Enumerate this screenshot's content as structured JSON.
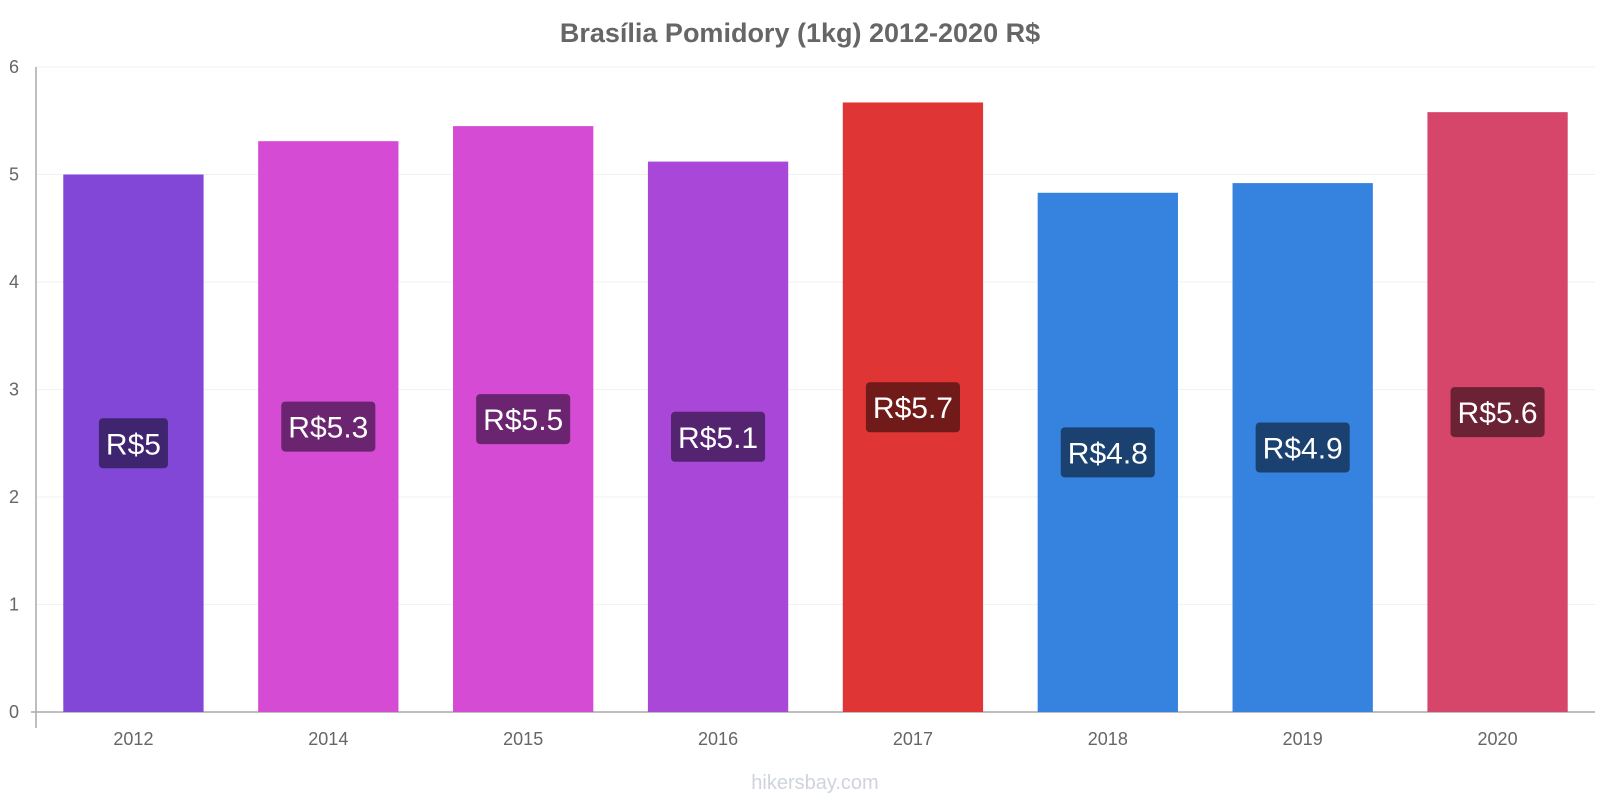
{
  "chart_data": {
    "type": "bar",
    "title": "Brasília Pomidory (1kg) 2012-2020 R$",
    "xlabel": "",
    "ylabel": "",
    "ylim": [
      0,
      6
    ],
    "yticks": [
      "0",
      "1",
      "2",
      "3",
      "4",
      "5",
      "6"
    ],
    "categories": [
      "2012",
      "2014",
      "2015",
      "2016",
      "2017",
      "2018",
      "2019",
      "2020"
    ],
    "values": [
      5.0,
      5.31,
      5.45,
      5.12,
      5.67,
      4.83,
      4.92,
      5.58
    ],
    "data_labels": [
      "R$5",
      "R$5.3",
      "R$5.5",
      "R$5.1",
      "R$5.7",
      "R$4.8",
      "R$4.9",
      "R$5.6"
    ],
    "bar_colors": [
      "#8347d8",
      "#d64bd3",
      "#d64bd3",
      "#a847d8",
      "#e03535",
      "#3583df",
      "#3583df",
      "#d6466a"
    ],
    "label_bg_colors": [
      "#3f2470",
      "#6b2470",
      "#6b2470",
      "#542470",
      "#701a1a",
      "#1a4170",
      "#1a4170",
      "#6b2235"
    ],
    "grid": true,
    "legend": "none"
  },
  "footer": {
    "watermark": "hikersbay.com"
  }
}
